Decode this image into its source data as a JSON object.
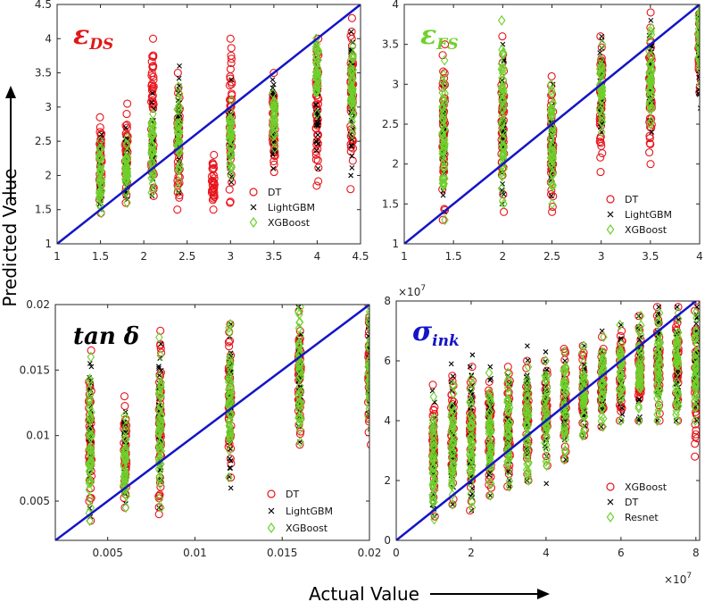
{
  "figure": {
    "xlabel": "Actual Value",
    "ylabel": "Predicted Value",
    "colors": {
      "DT": "#e8141b",
      "LightGBM": "#000000",
      "XGBoost": "#6fd02c",
      "diag": "#1414c8"
    }
  },
  "chart_data": [
    {
      "type": "scatter",
      "id": "eds",
      "title_main": "ε",
      "title_sub": "DS",
      "title_color": "#e01818",
      "xlim": [
        1,
        4.5
      ],
      "ylim": [
        1,
        4.5
      ],
      "xticks": [
        "1",
        "1.5",
        "2",
        "2.5",
        "3",
        "3.5",
        "4",
        "4.5"
      ],
      "yticks": [
        "1",
        "1.5",
        "2",
        "2.5",
        "3",
        "3.5",
        "4",
        "4.5"
      ],
      "legend": [
        "DT",
        "LightGBM",
        "XGBoost"
      ],
      "legend_loc": "bottom-right",
      "series": [
        {
          "name": "DT",
          "marker": "circle",
          "color": "#e8141b",
          "clusters": [
            {
              "x": 1.5,
              "y_min": 1.45,
              "y_max": 2.85
            },
            {
              "x": 1.8,
              "y_min": 1.6,
              "y_max": 3.05
            },
            {
              "x": 2.1,
              "y_min": 1.7,
              "y_max": 4.0
            },
            {
              "x": 2.4,
              "y_min": 1.5,
              "y_max": 3.5
            },
            {
              "x": 2.8,
              "y_min": 1.5,
              "y_max": 2.3
            },
            {
              "x": 3.0,
              "y_min": 1.6,
              "y_max": 4.0
            },
            {
              "x": 3.5,
              "y_min": 2.05,
              "y_max": 3.5
            },
            {
              "x": 4.0,
              "y_min": 1.85,
              "y_max": 4.0
            },
            {
              "x": 4.4,
              "y_min": 1.8,
              "y_max": 4.3
            }
          ]
        },
        {
          "name": "LightGBM",
          "marker": "x",
          "color": "#000000",
          "clusters": [
            {
              "x": 1.5,
              "y_min": 1.5,
              "y_max": 2.6
            },
            {
              "x": 1.8,
              "y_min": 1.65,
              "y_max": 2.7
            },
            {
              "x": 2.1,
              "y_min": 1.7,
              "y_max": 3.2
            },
            {
              "x": 2.4,
              "y_min": 1.75,
              "y_max": 3.6
            },
            {
              "x": 3.0,
              "y_min": 1.9,
              "y_max": 3.4
            },
            {
              "x": 3.5,
              "y_min": 2.1,
              "y_max": 3.4
            },
            {
              "x": 4.0,
              "y_min": 2.1,
              "y_max": 3.9
            },
            {
              "x": 4.4,
              "y_min": 2.0,
              "y_max": 4.1
            }
          ]
        },
        {
          "name": "XGBoost",
          "marker": "diamond",
          "color": "#6fd02c",
          "clusters": [
            {
              "x": 1.5,
              "y_min": 1.45,
              "y_max": 2.5
            },
            {
              "x": 1.8,
              "y_min": 1.6,
              "y_max": 2.55
            },
            {
              "x": 2.1,
              "y_min": 1.75,
              "y_max": 2.9
            },
            {
              "x": 2.4,
              "y_min": 1.8,
              "y_max": 3.3
            },
            {
              "x": 3.0,
              "y_min": 2.0,
              "y_max": 3.1
            },
            {
              "x": 3.5,
              "y_min": 2.4,
              "y_max": 3.2
            },
            {
              "x": 4.0,
              "y_min": 2.9,
              "y_max": 4.0
            },
            {
              "x": 4.4,
              "y_min": 2.6,
              "y_max": 3.9
            }
          ]
        }
      ]
    },
    {
      "type": "scatter",
      "id": "efs",
      "title_main": "ε",
      "title_sub": "FS",
      "title_color": "#6fd02c",
      "xlim": [
        1,
        4
      ],
      "ylim": [
        1,
        4
      ],
      "xticks": [
        "1",
        "1.5",
        "2",
        "2.5",
        "3",
        "3.5",
        "4"
      ],
      "yticks": [
        "1",
        "1.5",
        "2",
        "2.5",
        "3",
        "3.5",
        "4"
      ],
      "legend": [
        "DT",
        "LightGBM",
        "XGBoost"
      ],
      "legend_loc": "bottom-right",
      "series": [
        {
          "name": "DT",
          "marker": "circle",
          "color": "#e8141b",
          "clusters": [
            {
              "x": 1.4,
              "y_min": 1.3,
              "y_max": 3.5
            },
            {
              "x": 2.0,
              "y_min": 1.4,
              "y_max": 3.6
            },
            {
              "x": 2.5,
              "y_min": 1.4,
              "y_max": 3.1
            },
            {
              "x": 3.0,
              "y_min": 1.9,
              "y_max": 3.6
            },
            {
              "x": 3.5,
              "y_min": 2.0,
              "y_max": 3.9
            },
            {
              "x": 4.0,
              "y_min": 2.9,
              "y_max": 4.0
            }
          ]
        },
        {
          "name": "LightGBM",
          "marker": "x",
          "color": "#000000",
          "clusters": [
            {
              "x": 1.4,
              "y_min": 1.4,
              "y_max": 3.0
            },
            {
              "x": 2.0,
              "y_min": 1.5,
              "y_max": 3.5
            },
            {
              "x": 2.5,
              "y_min": 1.6,
              "y_max": 3.0
            },
            {
              "x": 3.0,
              "y_min": 2.4,
              "y_max": 3.6
            },
            {
              "x": 3.5,
              "y_min": 2.4,
              "y_max": 3.8
            },
            {
              "x": 4.0,
              "y_min": 2.7,
              "y_max": 4.0
            }
          ]
        },
        {
          "name": "XGBoost",
          "marker": "diamond",
          "color": "#6fd02c",
          "clusters": [
            {
              "x": 1.4,
              "y_min": 1.3,
              "y_max": 3.3
            },
            {
              "x": 2.0,
              "y_min": 1.5,
              "y_max": 3.8
            },
            {
              "x": 2.5,
              "y_min": 1.5,
              "y_max": 3.0
            },
            {
              "x": 3.0,
              "y_min": 2.4,
              "y_max": 3.5
            },
            {
              "x": 3.5,
              "y_min": 2.5,
              "y_max": 3.7
            },
            {
              "x": 4.0,
              "y_min": 3.0,
              "y_max": 4.0
            }
          ]
        }
      ]
    },
    {
      "type": "scatter",
      "id": "tand",
      "title_main": "tan δ",
      "title_sub": "",
      "title_color": "#000000",
      "xlim": [
        0.002,
        0.02
      ],
      "ylim": [
        0.002,
        0.02
      ],
      "xticks": [
        "0.005",
        "0.01",
        "0.015",
        "0.02"
      ],
      "xtick_values": [
        0.005,
        0.01,
        0.015,
        0.02
      ],
      "yticks": [
        "0.005",
        "0.01",
        "0.015",
        "0.02"
      ],
      "ytick_values": [
        0.005,
        0.01,
        0.015,
        0.02
      ],
      "legend": [
        "DT",
        "LightGBM",
        "XGBoost"
      ],
      "legend_loc": "bottom-right",
      "series": [
        {
          "name": "DT",
          "marker": "circle",
          "color": "#e8141b",
          "clusters": [
            {
              "x": 0.004,
              "y_min": 0.0035,
              "y_max": 0.0165
            },
            {
              "x": 0.006,
              "y_min": 0.0045,
              "y_max": 0.013
            },
            {
              "x": 0.008,
              "y_min": 0.004,
              "y_max": 0.018
            },
            {
              "x": 0.012,
              "y_min": 0.0068,
              "y_max": 0.0185
            },
            {
              "x": 0.016,
              "y_min": 0.0093,
              "y_max": 0.0195
            },
            {
              "x": 0.02,
              "y_min": 0.0093,
              "y_max": 0.02
            }
          ]
        },
        {
          "name": "LightGBM",
          "marker": "x",
          "color": "#000000",
          "clusters": [
            {
              "x": 0.004,
              "y_min": 0.0038,
              "y_max": 0.0155
            },
            {
              "x": 0.006,
              "y_min": 0.0048,
              "y_max": 0.0118
            },
            {
              "x": 0.008,
              "y_min": 0.0045,
              "y_max": 0.017
            },
            {
              "x": 0.012,
              "y_min": 0.006,
              "y_max": 0.0185
            },
            {
              "x": 0.016,
              "y_min": 0.0095,
              "y_max": 0.0198
            },
            {
              "x": 0.02,
              "y_min": 0.0105,
              "y_max": 0.02
            }
          ]
        },
        {
          "name": "XGBoost",
          "marker": "diamond",
          "color": "#6fd02c",
          "clusters": [
            {
              "x": 0.004,
              "y_min": 0.0035,
              "y_max": 0.016
            },
            {
              "x": 0.006,
              "y_min": 0.0045,
              "y_max": 0.0115
            },
            {
              "x": 0.008,
              "y_min": 0.0045,
              "y_max": 0.0175
            },
            {
              "x": 0.012,
              "y_min": 0.0068,
              "y_max": 0.0185
            },
            {
              "x": 0.016,
              "y_min": 0.0095,
              "y_max": 0.0198
            },
            {
              "x": 0.02,
              "y_min": 0.0105,
              "y_max": 0.02
            }
          ]
        }
      ]
    },
    {
      "type": "scatter",
      "id": "sink",
      "title_main": "σ",
      "title_sub": "ink",
      "title_color": "#1414c8",
      "xlim": [
        0,
        8.1
      ],
      "ylim": [
        0,
        8
      ],
      "xticks": [
        "0",
        "2",
        "4",
        "6",
        "8"
      ],
      "xtick_values": [
        0,
        2,
        4,
        6,
        8
      ],
      "yticks": [
        "0",
        "2",
        "4",
        "6",
        "8"
      ],
      "ytick_values": [
        0,
        2,
        4,
        6,
        8
      ],
      "exponent_label": "×10",
      "exponent_power": "7",
      "legend": [
        "XGBoost",
        "DT",
        "Resnet"
      ],
      "legend_loc": "bottom-right",
      "series": [
        {
          "name": "XGBoost",
          "marker": "circle",
          "color": "#e8141b",
          "clusters": [
            {
              "x": 1.0,
              "y_min": 0.8,
              "y_max": 5.2
            },
            {
              "x": 1.5,
              "y_min": 1.2,
              "y_max": 5.5
            },
            {
              "x": 2.0,
              "y_min": 1.0,
              "y_max": 5.8
            },
            {
              "x": 2.5,
              "y_min": 1.5,
              "y_max": 5.3
            },
            {
              "x": 3.0,
              "y_min": 1.8,
              "y_max": 5.8
            },
            {
              "x": 3.5,
              "y_min": 2.0,
              "y_max": 6.0
            },
            {
              "x": 4.0,
              "y_min": 2.5,
              "y_max": 6.0
            },
            {
              "x": 4.5,
              "y_min": 2.7,
              "y_max": 6.4
            },
            {
              "x": 5.0,
              "y_min": 3.5,
              "y_max": 6.5
            },
            {
              "x": 5.5,
              "y_min": 3.8,
              "y_max": 6.8
            },
            {
              "x": 6.0,
              "y_min": 4.0,
              "y_max": 7.0
            },
            {
              "x": 6.5,
              "y_min": 4.0,
              "y_max": 7.5
            },
            {
              "x": 7.0,
              "y_min": 4.0,
              "y_max": 7.8
            },
            {
              "x": 7.5,
              "y_min": 4.0,
              "y_max": 7.8
            },
            {
              "x": 8.0,
              "y_min": 2.8,
              "y_max": 8.0
            }
          ]
        },
        {
          "name": "DT",
          "marker": "x",
          "color": "#000000",
          "clusters": [
            {
              "x": 1.0,
              "y_min": 0.8,
              "y_max": 5.0
            },
            {
              "x": 1.5,
              "y_min": 1.2,
              "y_max": 5.9
            },
            {
              "x": 2.0,
              "y_min": 1.0,
              "y_max": 6.2
            },
            {
              "x": 2.5,
              "y_min": 1.5,
              "y_max": 5.8
            },
            {
              "x": 3.0,
              "y_min": 1.8,
              "y_max": 5.5
            },
            {
              "x": 3.5,
              "y_min": 2.0,
              "y_max": 6.5
            },
            {
              "x": 4.0,
              "y_min": 1.9,
              "y_max": 6.3
            },
            {
              "x": 4.5,
              "y_min": 2.7,
              "y_max": 6.0
            },
            {
              "x": 5.0,
              "y_min": 3.5,
              "y_max": 6.5
            },
            {
              "x": 5.5,
              "y_min": 3.8,
              "y_max": 7.0
            },
            {
              "x": 6.0,
              "y_min": 4.0,
              "y_max": 7.2
            },
            {
              "x": 6.5,
              "y_min": 4.0,
              "y_max": 7.5
            },
            {
              "x": 7.0,
              "y_min": 4.0,
              "y_max": 7.8
            },
            {
              "x": 7.5,
              "y_min": 4.0,
              "y_max": 7.8
            },
            {
              "x": 8.0,
              "y_min": 4.0,
              "y_max": 7.8
            }
          ]
        },
        {
          "name": "Resnet",
          "marker": "diamond",
          "color": "#6fd02c",
          "clusters": [
            {
              "x": 1.0,
              "y_min": 0.7,
              "y_max": 4.8
            },
            {
              "x": 1.5,
              "y_min": 1.2,
              "y_max": 5.2
            },
            {
              "x": 2.0,
              "y_min": 1.1,
              "y_max": 5.4
            },
            {
              "x": 2.5,
              "y_min": 1.5,
              "y_max": 5.6
            },
            {
              "x": 3.0,
              "y_min": 1.8,
              "y_max": 5.6
            },
            {
              "x": 3.5,
              "y_min": 2.0,
              "y_max": 5.8
            },
            {
              "x": 4.0,
              "y_min": 2.5,
              "y_max": 6.0
            },
            {
              "x": 4.5,
              "y_min": 2.7,
              "y_max": 6.3
            },
            {
              "x": 5.0,
              "y_min": 3.5,
              "y_max": 6.5
            },
            {
              "x": 5.5,
              "y_min": 3.8,
              "y_max": 6.8
            },
            {
              "x": 6.0,
              "y_min": 4.0,
              "y_max": 7.2
            },
            {
              "x": 6.5,
              "y_min": 4.0,
              "y_max": 7.5
            },
            {
              "x": 7.0,
              "y_min": 4.0,
              "y_max": 7.6
            },
            {
              "x": 7.5,
              "y_min": 4.0,
              "y_max": 7.6
            },
            {
              "x": 8.0,
              "y_min": 4.0,
              "y_max": 7.6
            }
          ]
        }
      ]
    }
  ]
}
